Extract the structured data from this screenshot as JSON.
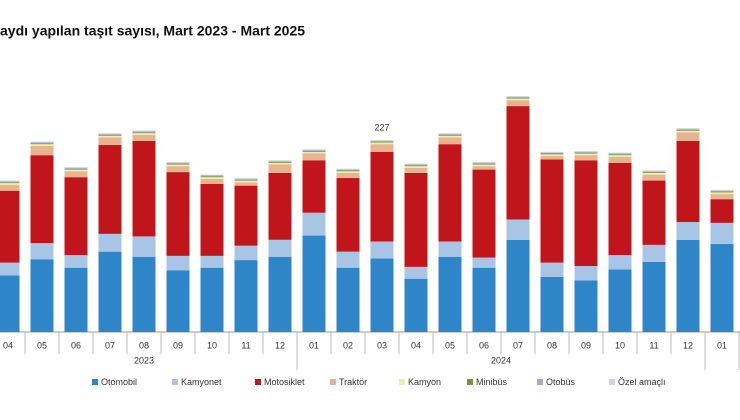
{
  "chart_data": {
    "type": "stacked-bar",
    "title": "aydı yapılan taşıt sayısı, Mart 2023 - Mart 2025",
    "categories": [
      "04",
      "05",
      "06",
      "07",
      "08",
      "09",
      "10",
      "11",
      "12",
      "01",
      "02",
      "03",
      "04",
      "05",
      "06",
      "07",
      "08",
      "09",
      "10",
      "11",
      "12",
      "01"
    ],
    "category_groups": [
      "2023",
      "2023",
      "2023",
      "2023",
      "2023",
      "2023",
      "2023",
      "2023",
      "2023",
      "2024",
      "2024",
      "2024",
      "2024",
      "2024",
      "2024",
      "2024",
      "2024",
      "2024",
      "2024",
      "2024",
      "2024",
      null
    ],
    "series": [
      {
        "name": "Otomobil",
        "color": "#2e86c9",
        "values": [
          67,
          86,
          76,
          95,
          89,
          73,
          76,
          85,
          89,
          114,
          76,
          87,
          63,
          89,
          76,
          109,
          65,
          61,
          74,
          83,
          109,
          104
        ]
      },
      {
        "name": "Kamyonet",
        "color": "#a9c5e6",
        "values": [
          15,
          19,
          15,
          21,
          24,
          17,
          14,
          17,
          20,
          27,
          19,
          20,
          14,
          18,
          12,
          24,
          17,
          17,
          17,
          20,
          21,
          25
        ]
      },
      {
        "name": "Motosiklet",
        "color": "#c0161b",
        "values": [
          85,
          104,
          92,
          105,
          113,
          99,
          85,
          71,
          79,
          62,
          87,
          106,
          111,
          115,
          104,
          134,
          122,
          125,
          109,
          76,
          96,
          28
        ]
      },
      {
        "name": "Traktör",
        "color": "#e8b48f",
        "values": [
          7,
          11,
          7,
          9,
          7,
          7,
          6,
          4,
          10,
          8,
          6,
          9,
          6,
          8,
          4,
          7,
          4,
          6,
          7,
          7,
          10,
          6
        ]
      },
      {
        "name": "Kamyon",
        "color": "#f1ecae",
        "values": [
          2,
          2,
          2,
          2,
          2,
          2,
          2,
          2,
          2,
          2,
          2,
          2,
          2,
          2,
          2,
          2,
          2,
          2,
          2,
          2,
          2,
          2
        ]
      },
      {
        "name": "Minibüs",
        "color": "#6a9a3a",
        "values": [
          1,
          1,
          1,
          1,
          1,
          1,
          1,
          1,
          1,
          1,
          1,
          1,
          1,
          1,
          1,
          1,
          1,
          1,
          1,
          1,
          1,
          1
        ]
      },
      {
        "name": "Otobüs",
        "color": "#9db0c9",
        "values": [
          1,
          1,
          1,
          1,
          1,
          1,
          1,
          1,
          1,
          1,
          1,
          1,
          1,
          1,
          1,
          1,
          1,
          1,
          1,
          1,
          1,
          1
        ]
      },
      {
        "name": "Özel amaçlı",
        "color": "#dccbea",
        "values": [
          1,
          1,
          1,
          1,
          1,
          1,
          1,
          1,
          1,
          1,
          1,
          1,
          1,
          1,
          1,
          1,
          1,
          1,
          1,
          1,
          1,
          1
        ]
      }
    ],
    "totals": [
      null,
      null,
      null,
      null,
      null,
      null,
      null,
      null,
      null,
      null,
      null,
      227,
      null,
      null,
      null,
      null,
      null,
      null,
      null,
      null,
      null,
      null
    ]
  }
}
